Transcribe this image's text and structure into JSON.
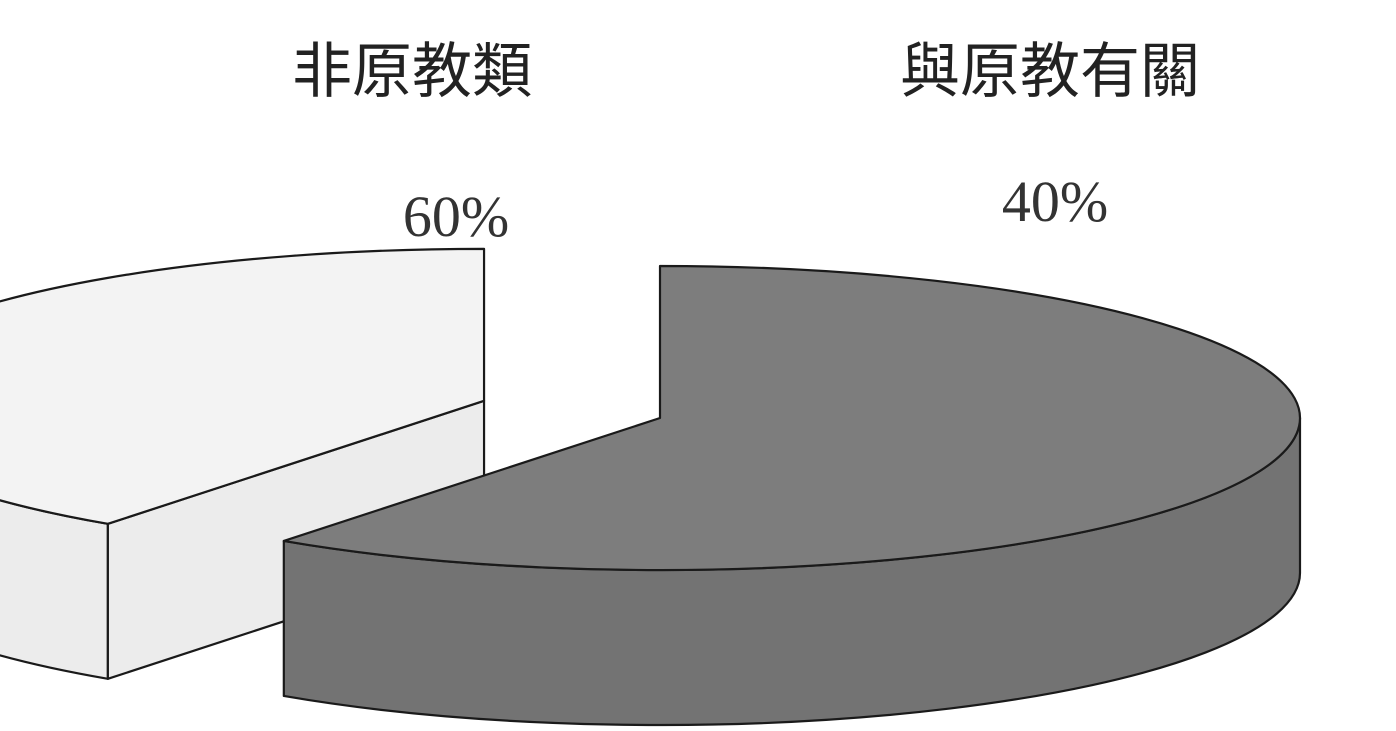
{
  "chart_data": {
    "type": "pie",
    "style": "3d-exploded",
    "title": "",
    "slices": [
      {
        "name": "非原教類",
        "value": 60,
        "label": "60%",
        "color": "#7a7a7a",
        "top_color": "#7d7d7d",
        "side_color": "#737373"
      },
      {
        "name": "與原教有關",
        "value": 40,
        "label": "40%",
        "color": "#f0f0f0",
        "top_color": "#f3f3f3",
        "side_color": "#ececec"
      }
    ],
    "legend": "none",
    "grid": false
  }
}
